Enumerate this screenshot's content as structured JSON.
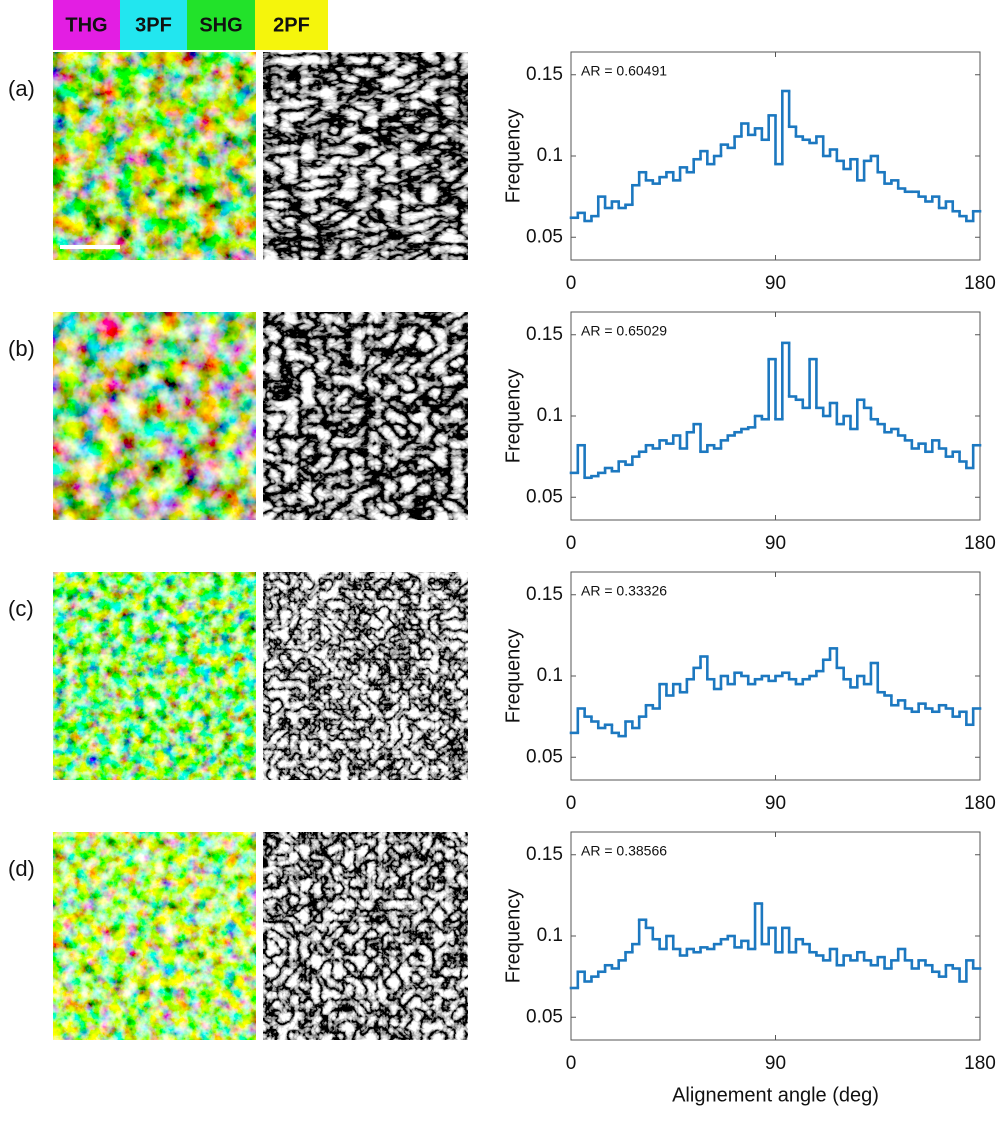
{
  "legend": [
    {
      "name": "THG",
      "color": "#e31ee3"
    },
    {
      "name": "3PF",
      "color": "#22e6ef"
    },
    {
      "name": "SHG",
      "color": "#22e22a"
    },
    {
      "name": "2PF",
      "color": "#f5f50c"
    }
  ],
  "chart_data": [
    {
      "type": "histogram",
      "panel": "(a)",
      "annotation": "AR = 0.60491",
      "ylabel": "Frequency",
      "color": "#1c78c0",
      "bins": [
        0,
        3,
        6,
        9,
        12,
        15,
        18,
        21,
        24,
        27,
        30,
        33,
        36,
        39,
        42,
        45,
        48,
        51,
        54,
        57,
        60,
        63,
        66,
        69,
        72,
        75,
        78,
        81,
        84,
        87,
        90,
        93,
        96,
        99,
        102,
        105,
        108,
        111,
        114,
        117,
        120,
        123,
        126,
        129,
        132,
        135,
        138,
        141,
        144,
        147,
        150,
        153,
        156,
        159,
        162,
        165,
        168,
        171,
        174,
        177,
        180
      ],
      "values": [
        0.062,
        0.065,
        0.06,
        0.063,
        0.075,
        0.068,
        0.072,
        0.068,
        0.07,
        0.082,
        0.09,
        0.085,
        0.083,
        0.087,
        0.09,
        0.085,
        0.093,
        0.09,
        0.098,
        0.103,
        0.095,
        0.1,
        0.107,
        0.105,
        0.112,
        0.12,
        0.113,
        0.117,
        0.11,
        0.125,
        0.095,
        0.14,
        0.118,
        0.112,
        0.11,
        0.108,
        0.112,
        0.1,
        0.104,
        0.097,
        0.092,
        0.098,
        0.085,
        0.097,
        0.1,
        0.09,
        0.083,
        0.085,
        0.08,
        0.078,
        0.078,
        0.075,
        0.072,
        0.075,
        0.068,
        0.072,
        0.066,
        0.063,
        0.06,
        0.066
      ],
      "xlim": [
        0,
        180
      ],
      "xticks": [
        0,
        90,
        180
      ],
      "ylim": [
        0.036,
        0.164
      ],
      "yticks": [
        0.05,
        0.1,
        0.15
      ]
    },
    {
      "type": "histogram",
      "panel": "(b)",
      "annotation": "AR = 0.65029",
      "ylabel": "Frequency",
      "color": "#1c78c0",
      "bins": [
        0,
        3,
        6,
        9,
        12,
        15,
        18,
        21,
        24,
        27,
        30,
        33,
        36,
        39,
        42,
        45,
        48,
        51,
        54,
        57,
        60,
        63,
        66,
        69,
        72,
        75,
        78,
        81,
        84,
        87,
        90,
        93,
        96,
        99,
        102,
        105,
        108,
        111,
        114,
        117,
        120,
        123,
        126,
        129,
        132,
        135,
        138,
        141,
        144,
        147,
        150,
        153,
        156,
        159,
        162,
        165,
        168,
        171,
        174,
        177,
        180
      ],
      "values": [
        0.065,
        0.082,
        0.062,
        0.063,
        0.065,
        0.068,
        0.066,
        0.072,
        0.07,
        0.075,
        0.078,
        0.082,
        0.08,
        0.085,
        0.083,
        0.088,
        0.08,
        0.09,
        0.095,
        0.078,
        0.082,
        0.08,
        0.085,
        0.088,
        0.09,
        0.092,
        0.093,
        0.1,
        0.098,
        0.135,
        0.098,
        0.145,
        0.112,
        0.11,
        0.105,
        0.135,
        0.105,
        0.1,
        0.108,
        0.095,
        0.1,
        0.092,
        0.11,
        0.105,
        0.098,
        0.095,
        0.09,
        0.092,
        0.088,
        0.085,
        0.08,
        0.083,
        0.078,
        0.085,
        0.08,
        0.075,
        0.078,
        0.072,
        0.068,
        0.082
      ],
      "xlim": [
        0,
        180
      ],
      "xticks": [
        0,
        90,
        180
      ],
      "ylim": [
        0.036,
        0.164
      ],
      "yticks": [
        0.05,
        0.1,
        0.15
      ]
    },
    {
      "type": "histogram",
      "panel": "(c)",
      "annotation": "AR = 0.33326",
      "ylabel": "Frequency",
      "color": "#1c78c0",
      "bins": [
        0,
        3,
        6,
        9,
        12,
        15,
        18,
        21,
        24,
        27,
        30,
        33,
        36,
        39,
        42,
        45,
        48,
        51,
        54,
        57,
        60,
        63,
        66,
        69,
        72,
        75,
        78,
        81,
        84,
        87,
        90,
        93,
        96,
        99,
        102,
        105,
        108,
        111,
        114,
        117,
        120,
        123,
        126,
        129,
        132,
        135,
        138,
        141,
        144,
        147,
        150,
        153,
        156,
        159,
        162,
        165,
        168,
        171,
        174,
        177,
        180
      ],
      "values": [
        0.065,
        0.08,
        0.075,
        0.072,
        0.068,
        0.07,
        0.065,
        0.063,
        0.072,
        0.068,
        0.075,
        0.082,
        0.08,
        0.095,
        0.088,
        0.095,
        0.09,
        0.098,
        0.105,
        0.112,
        0.098,
        0.092,
        0.1,
        0.095,
        0.102,
        0.1,
        0.095,
        0.098,
        0.1,
        0.097,
        0.1,
        0.102,
        0.098,
        0.095,
        0.098,
        0.1,
        0.103,
        0.11,
        0.117,
        0.105,
        0.098,
        0.093,
        0.1,
        0.095,
        0.108,
        0.09,
        0.088,
        0.082,
        0.085,
        0.08,
        0.078,
        0.083,
        0.08,
        0.078,
        0.082,
        0.08,
        0.075,
        0.078,
        0.07,
        0.08
      ],
      "xlim": [
        0,
        180
      ],
      "xticks": [
        0,
        90,
        180
      ],
      "ylim": [
        0.036,
        0.164
      ],
      "yticks": [
        0.05,
        0.1,
        0.15
      ]
    },
    {
      "type": "histogram",
      "panel": "(d)",
      "annotation": "AR = 0.38566",
      "ylabel": "Frequency",
      "xlabel": "Alignement angle (deg)",
      "color": "#1c78c0",
      "bins": [
        0,
        3,
        6,
        9,
        12,
        15,
        18,
        21,
        24,
        27,
        30,
        33,
        36,
        39,
        42,
        45,
        48,
        51,
        54,
        57,
        60,
        63,
        66,
        69,
        72,
        75,
        78,
        81,
        84,
        87,
        90,
        93,
        96,
        99,
        102,
        105,
        108,
        111,
        114,
        117,
        120,
        123,
        126,
        129,
        132,
        135,
        138,
        141,
        144,
        147,
        150,
        153,
        156,
        159,
        162,
        165,
        168,
        171,
        174,
        177,
        180
      ],
      "values": [
        0.068,
        0.078,
        0.072,
        0.075,
        0.078,
        0.082,
        0.08,
        0.085,
        0.09,
        0.095,
        0.11,
        0.105,
        0.098,
        0.092,
        0.1,
        0.092,
        0.088,
        0.092,
        0.09,
        0.093,
        0.092,
        0.095,
        0.098,
        0.1,
        0.093,
        0.097,
        0.092,
        0.12,
        0.095,
        0.105,
        0.09,
        0.105,
        0.09,
        0.098,
        0.095,
        0.09,
        0.088,
        0.085,
        0.092,
        0.082,
        0.088,
        0.085,
        0.09,
        0.085,
        0.082,
        0.087,
        0.08,
        0.085,
        0.092,
        0.085,
        0.08,
        0.085,
        0.082,
        0.078,
        0.075,
        0.082,
        0.08,
        0.072,
        0.085,
        0.08
      ],
      "xlim": [
        0,
        180
      ],
      "xticks": [
        0,
        90,
        180
      ],
      "ylim": [
        0.036,
        0.164
      ],
      "yticks": [
        0.05,
        0.1,
        0.15
      ]
    }
  ]
}
